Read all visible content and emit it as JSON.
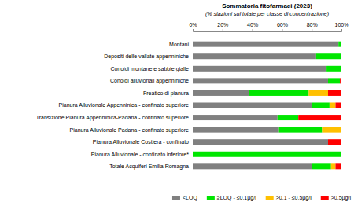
{
  "chart_data": {
    "type": "bar",
    "orientation": "horizontal",
    "stacked": true,
    "title": "Sommatoria fitofarmaci (2023)",
    "subtitle": "(% stazioni sul totale per classe di concentrazione)",
    "categories": [
      "Montani",
      "Depositi delle vallate appenniniche",
      "Conoidi montane e sabbie gialle",
      "Conoidi alluvionali appenniniche",
      "Freatico di pianura",
      "Pianura Alluvionale Appenninica - confinato superiore",
      "Transizione Pianura Appenninica-Padana - confinato superiore",
      "Pianura Alluvionale Padana - confinato superiore",
      "Pianura Alluvionale Costiera - confinato",
      "Pianura Alluvionale - confinato inferiore*",
      "Totale Acquiferi Emilia Romagna"
    ],
    "series": [
      {
        "name": "<LOQ",
        "color": "#808080",
        "values": [
          98,
          83,
          90,
          91,
          38,
          80,
          57,
          58,
          91,
          0,
          80
        ]
      },
      {
        "name": "≥LOQ - ≤0,1µg/l",
        "color": "#00e600",
        "values": [
          2,
          17,
          10,
          8,
          40,
          12,
          14,
          29,
          0,
          100,
          13
        ]
      },
      {
        "name": ">0,1 - ≤0,5µg/l",
        "color": "#ffc000",
        "values": [
          0,
          0,
          0,
          0,
          13,
          4,
          0,
          13,
          0,
          0,
          3
        ]
      },
      {
        "name": ">0,5µg/l",
        "color": "#ff0000",
        "values": [
          0,
          0,
          0,
          1,
          9,
          4,
          29,
          0,
          9,
          0,
          4
        ]
      }
    ],
    "xlim": [
      0,
      100
    ],
    "xticks": [
      {
        "value": 0,
        "label": "0%"
      },
      {
        "value": 20,
        "label": "20%"
      },
      {
        "value": 40,
        "label": "40%"
      },
      {
        "value": 60,
        "label": "60%"
      },
      {
        "value": 80,
        "label": "80%"
      },
      {
        "value": 100,
        "label": "100%"
      }
    ],
    "grid": false,
    "legend": "bottom"
  }
}
